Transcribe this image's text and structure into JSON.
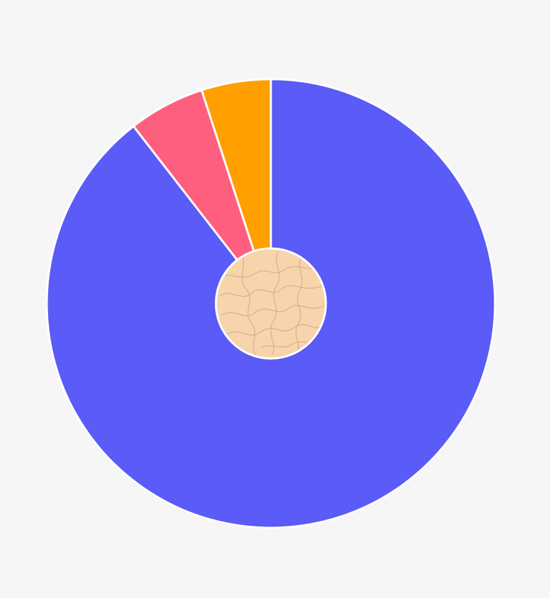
{
  "chart_data": {
    "type": "pie",
    "title": "",
    "start_angle_deg": 0,
    "direction": "clockwise",
    "slices": [
      {
        "value": 89.5,
        "color": "#5b5bf7"
      },
      {
        "value": 5.5,
        "color": "#ff5f7e"
      },
      {
        "value": 5.0,
        "color": "#ffa000"
      }
    ],
    "center_hole": {
      "fill": "#f7d4ab",
      "texture": "wavy-lines",
      "texture_color": "#c8a58a"
    },
    "slice_border_color": "#ffffff"
  }
}
